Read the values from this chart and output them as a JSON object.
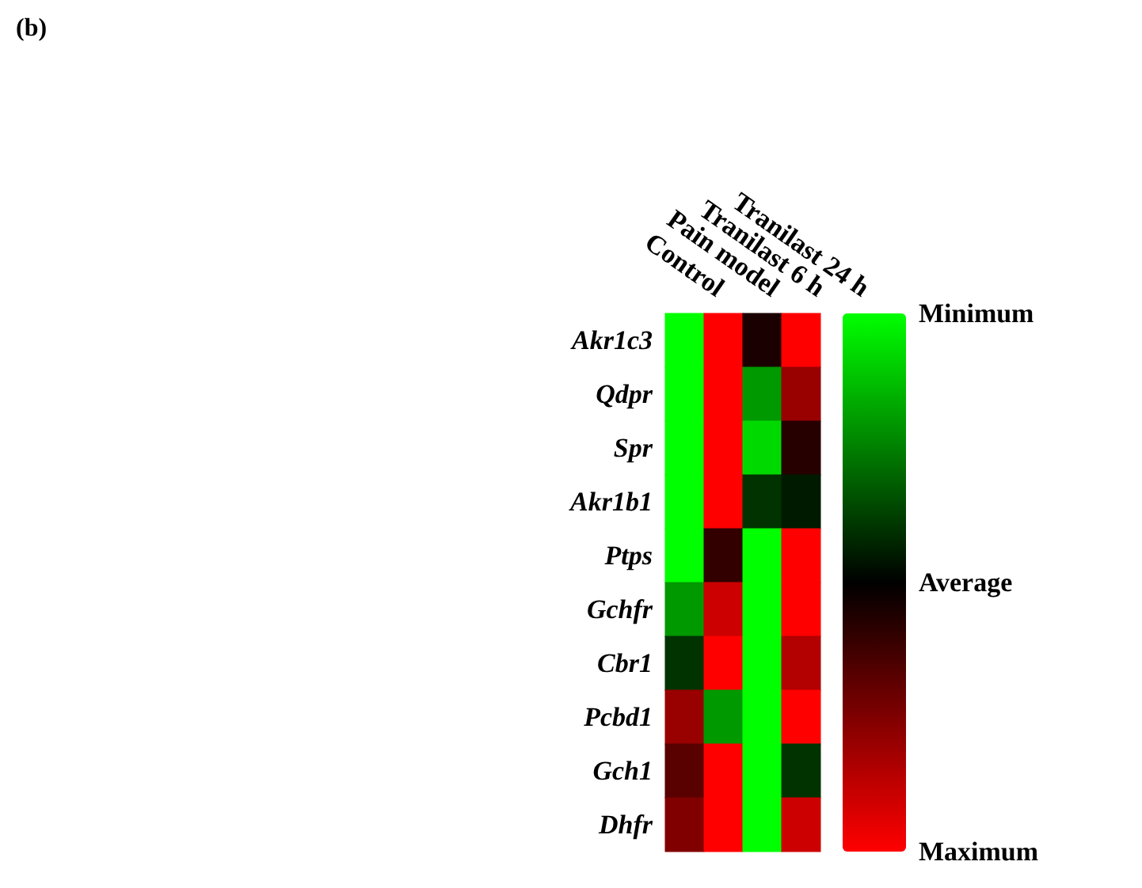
{
  "chart_data": {
    "type": "heatmap",
    "annotations": [
      "(b)"
    ],
    "categories": [
      "Control",
      "Pain model",
      "Tranilast 6 h",
      "Tranilast 24 h"
    ],
    "y_categories": [
      "Akr1c3",
      "Qdpr",
      "Spr",
      "Akr1b1",
      "Ptps",
      "Gchfr",
      "Cbr1",
      "Pcbd1",
      "Gch1",
      "Dhfr"
    ],
    "cells": [
      [
        -1,
        1,
        0.1,
        1
      ],
      [
        -1,
        1,
        -0.6,
        0.6
      ],
      [
        -1,
        1,
        -0.85,
        0.15
      ],
      [
        -1,
        1,
        -0.2,
        -0.1
      ],
      [
        -1,
        0.2,
        -1,
        1
      ],
      [
        -0.6,
        0.8,
        -1,
        1
      ],
      [
        -0.2,
        1,
        -1,
        0.7
      ],
      [
        0.6,
        -0.6,
        -1,
        1
      ],
      [
        0.35,
        1,
        -1,
        -0.2
      ],
      [
        0.5,
        1,
        -1,
        0.8
      ]
    ],
    "clim": [
      -1,
      1
    ],
    "cticks": [
      {
        "value": -1,
        "label": "Minimum"
      },
      {
        "value": 0,
        "label": "Average"
      },
      {
        "value": 1,
        "label": "Maximum"
      }
    ]
  }
}
